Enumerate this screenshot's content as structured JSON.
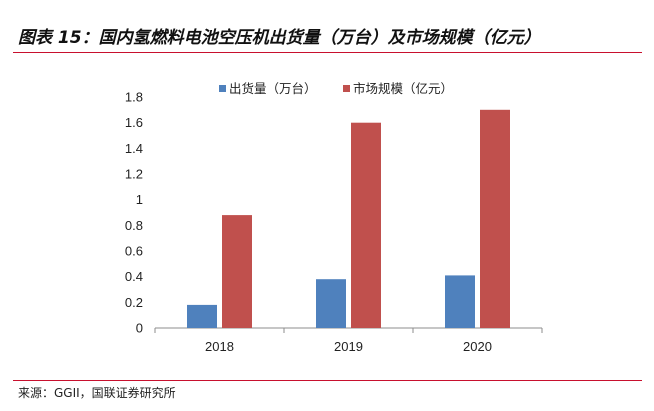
{
  "figure": {
    "source": "来源：GGII，国联证券研究所",
    "rule_color": "#C8102E"
  },
  "chart_data": {
    "type": "bar",
    "title": "图表 15：国内氢燃料电池空压机出货量（万台）及市场规模（亿元）",
    "categories": [
      "2018",
      "2019",
      "2020"
    ],
    "series": [
      {
        "name": "出货量（万台）",
        "values": [
          0.18,
          0.38,
          0.41
        ],
        "color": "#4F81BD"
      },
      {
        "name": "市场规模（亿元）",
        "values": [
          0.88,
          1.6,
          1.7
        ],
        "color": "#C0504D"
      }
    ],
    "yticks": [
      "0",
      "0.2",
      "0.4",
      "0.6",
      "0.8",
      "1",
      "1.2",
      "1.4",
      "1.6",
      "1.8"
    ],
    "ylim": [
      0,
      1.8
    ],
    "grid": false,
    "legend": "top"
  }
}
